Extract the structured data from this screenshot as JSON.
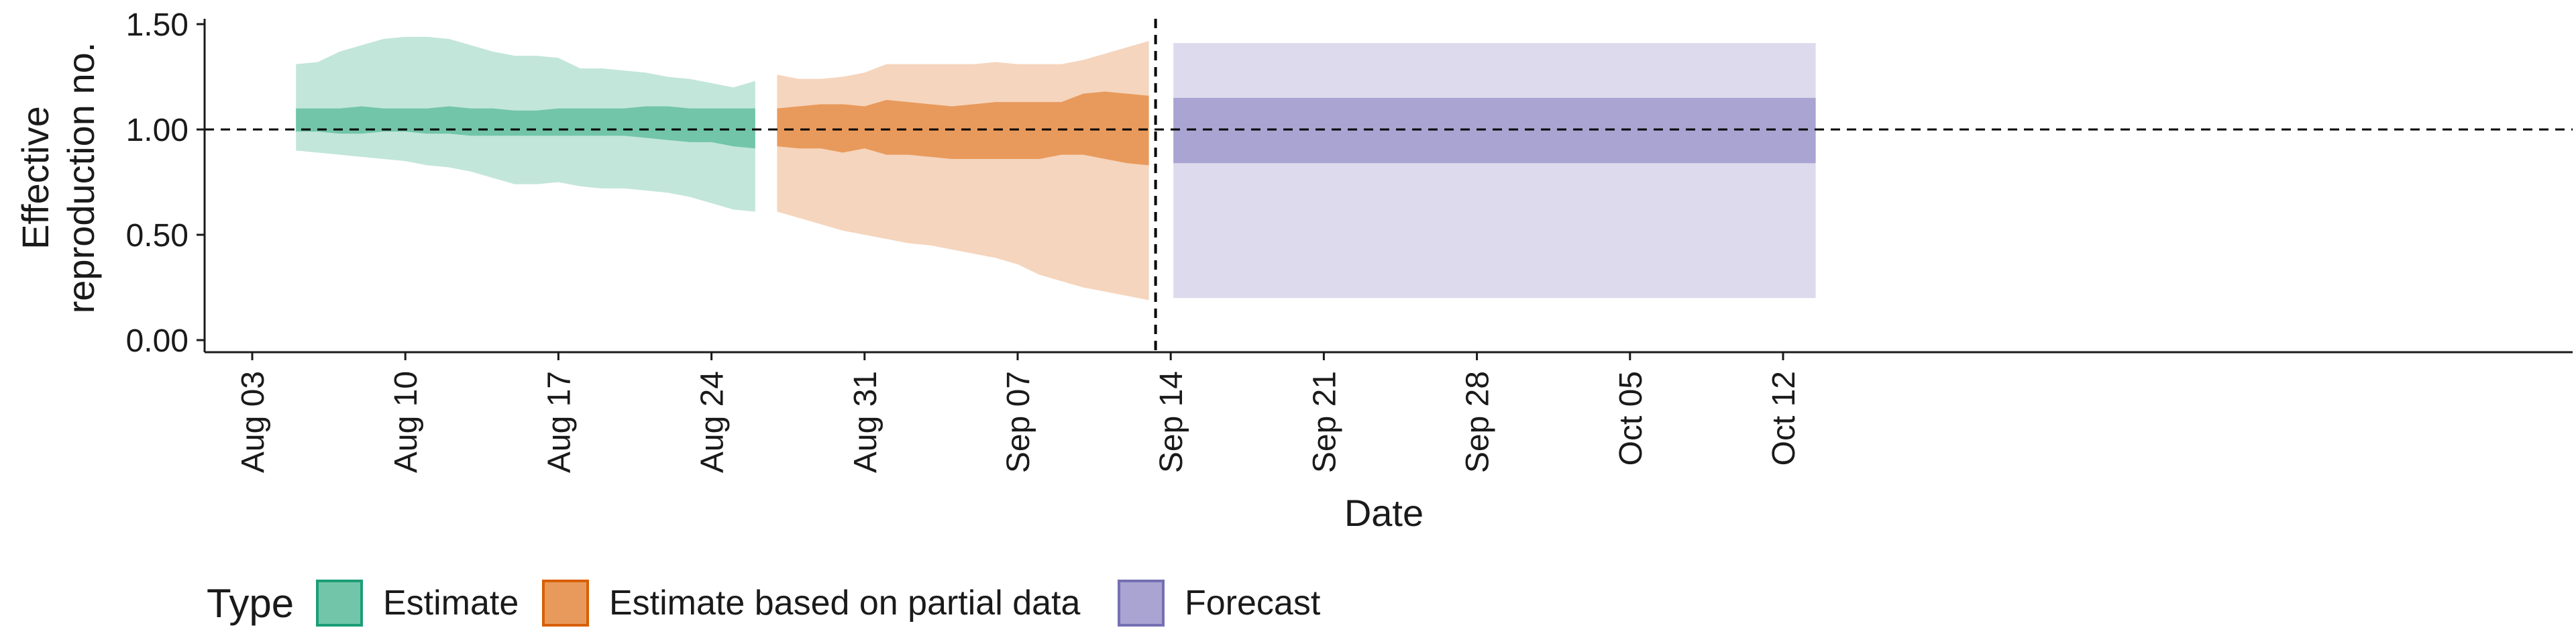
{
  "chart_data": {
    "type": "area",
    "title": "",
    "xlabel": "Date",
    "ylabel": [
      "Effective",
      "reproduction no."
    ],
    "ylim": [
      0,
      1.5
    ],
    "yticks": [
      "0.00",
      "0.50",
      "1.00",
      "1.50"
    ],
    "yticks_values": [
      0,
      0.5,
      1.0,
      1.5
    ],
    "xlim": [
      "2020-08-03",
      "2020-10-16"
    ],
    "xticks": [
      "Aug 03",
      "Aug 10",
      "Aug 17",
      "Aug 24",
      "Aug 31",
      "Sep 07",
      "Sep 14",
      "Sep 21",
      "Sep 28",
      "Oct 05",
      "Oct 12"
    ],
    "xticks_values": [
      "2020-08-03",
      "2020-08-10",
      "2020-08-17",
      "2020-08-24",
      "2020-08-31",
      "2020-09-07",
      "2020-09-14",
      "2020-09-21",
      "2020-09-28",
      "2020-10-05",
      "2020-10-12"
    ],
    "reference_line": {
      "y": 1.0,
      "style": "dashed"
    },
    "vertical_line": {
      "x": "2020-09-13",
      "style": "dashed"
    },
    "grid": false,
    "legend": {
      "title": "Type",
      "placement": "bottom-left",
      "entries": [
        {
          "label": "Estimate",
          "fill": "#72c5a8",
          "stroke": "#1b9e77"
        },
        {
          "label": "Estimate based on partial data",
          "fill": "#e89a5c",
          "stroke": "#d95f02"
        },
        {
          "label": "Forecast",
          "fill": "#a9a4d2",
          "stroke": "#7570b3"
        }
      ]
    },
    "series": [
      {
        "name": "Estimate",
        "color_outer": "#c3e6da",
        "color_inner": "#72c5a8",
        "x": [
          "2020-08-05",
          "2020-08-06",
          "2020-08-07",
          "2020-08-08",
          "2020-08-09",
          "2020-08-10",
          "2020-08-11",
          "2020-08-12",
          "2020-08-13",
          "2020-08-14",
          "2020-08-15",
          "2020-08-16",
          "2020-08-17",
          "2020-08-18",
          "2020-08-19",
          "2020-08-20",
          "2020-08-21",
          "2020-08-22",
          "2020-08-23",
          "2020-08-24",
          "2020-08-25",
          "2020-08-26"
        ],
        "lower_outer": [
          0.9,
          0.89,
          0.88,
          0.87,
          0.86,
          0.85,
          0.83,
          0.82,
          0.8,
          0.77,
          0.74,
          0.74,
          0.75,
          0.73,
          0.72,
          0.72,
          0.71,
          0.7,
          0.68,
          0.65,
          0.62,
          0.61
        ],
        "upper_outer": [
          1.31,
          1.32,
          1.37,
          1.4,
          1.43,
          1.44,
          1.44,
          1.43,
          1.4,
          1.37,
          1.35,
          1.35,
          1.34,
          1.29,
          1.29,
          1.28,
          1.27,
          1.25,
          1.24,
          1.22,
          1.2,
          1.23
        ],
        "lower_inner": [
          0.99,
          0.99,
          0.98,
          0.98,
          0.99,
          0.99,
          0.98,
          0.98,
          0.97,
          0.97,
          0.97,
          0.97,
          0.97,
          0.97,
          0.97,
          0.97,
          0.96,
          0.95,
          0.94,
          0.94,
          0.92,
          0.91
        ],
        "upper_inner": [
          1.1,
          1.1,
          1.1,
          1.11,
          1.1,
          1.1,
          1.1,
          1.11,
          1.1,
          1.1,
          1.09,
          1.09,
          1.1,
          1.1,
          1.1,
          1.1,
          1.11,
          1.11,
          1.1,
          1.1,
          1.1,
          1.1
        ]
      },
      {
        "name": "Estimate based on partial data",
        "color_outer": "#f5d5bd",
        "color_inner": "#e89a5c",
        "x": [
          "2020-08-27",
          "2020-08-28",
          "2020-08-29",
          "2020-08-30",
          "2020-08-31",
          "2020-09-01",
          "2020-09-02",
          "2020-09-03",
          "2020-09-04",
          "2020-09-05",
          "2020-09-06",
          "2020-09-07",
          "2020-09-08",
          "2020-09-09",
          "2020-09-10",
          "2020-09-11",
          "2020-09-12",
          "2020-09-13"
        ],
        "lower_outer": [
          0.61,
          0.58,
          0.55,
          0.52,
          0.5,
          0.48,
          0.46,
          0.45,
          0.43,
          0.41,
          0.39,
          0.36,
          0.31,
          0.28,
          0.25,
          0.23,
          0.21,
          0.19
        ],
        "upper_outer": [
          1.26,
          1.24,
          1.24,
          1.25,
          1.27,
          1.31,
          1.31,
          1.31,
          1.31,
          1.31,
          1.32,
          1.31,
          1.31,
          1.31,
          1.33,
          1.36,
          1.39,
          1.42
        ],
        "lower_inner": [
          0.92,
          0.91,
          0.91,
          0.89,
          0.91,
          0.88,
          0.88,
          0.87,
          0.86,
          0.86,
          0.86,
          0.86,
          0.86,
          0.88,
          0.88,
          0.86,
          0.84,
          0.83
        ],
        "upper_inner": [
          1.1,
          1.11,
          1.12,
          1.12,
          1.11,
          1.14,
          1.13,
          1.12,
          1.11,
          1.12,
          1.13,
          1.13,
          1.13,
          1.13,
          1.17,
          1.18,
          1.17,
          1.16
        ]
      },
      {
        "name": "Forecast",
        "color_outer": "#dcdaec",
        "color_inner": "#a9a4d2",
        "x": [
          "2020-09-14",
          "2020-10-13"
        ],
        "lower_outer": [
          0.2,
          0.2
        ],
        "upper_outer": [
          1.41,
          1.41
        ],
        "lower_inner": [
          0.84,
          0.84
        ],
        "upper_inner": [
          1.15,
          1.15
        ]
      }
    ]
  }
}
